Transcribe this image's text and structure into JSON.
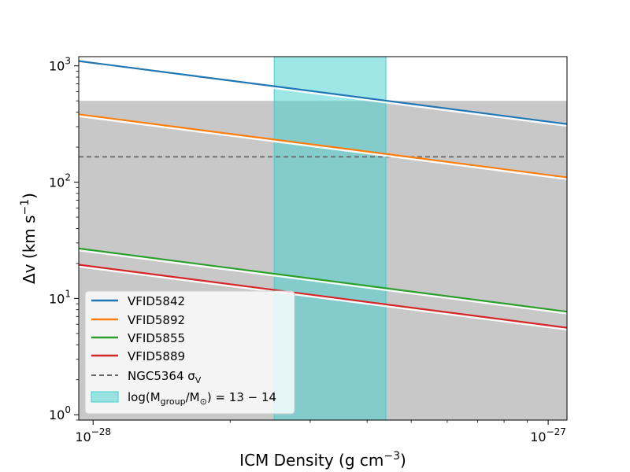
{
  "chart_data": {
    "type": "line",
    "xscale": "log",
    "yscale": "log",
    "xlim": [
      9.3e-29,
      1.1e-27
    ],
    "ylim": [
      0.9,
      1200
    ],
    "xlabel": "ICM Density (g cm",
    "xlabel_sup": "−3",
    "xlabel_close": ")",
    "ylabel_main": "Δv (km s",
    "ylabel_sup": "−1",
    "ylabel_close": ")",
    "xticks": [
      {
        "value": 1e-28,
        "base": "10",
        "exp": "−28"
      },
      {
        "value": 1e-27,
        "base": "10",
        "exp": "−27"
      }
    ],
    "yticks": [
      {
        "value": 1,
        "base": "10",
        "exp": "0"
      },
      {
        "value": 10,
        "base": "10",
        "exp": "1"
      },
      {
        "value": 100,
        "base": "10",
        "exp": "2"
      },
      {
        "value": 1000,
        "base": "10",
        "exp": "3"
      }
    ],
    "series": [
      {
        "name": "VFID5842",
        "color": "#1f77b4",
        "x": [
          9.3e-29,
          1.1e-27
        ],
        "y": [
          1100,
          316
        ]
      },
      {
        "name": "VFID5892",
        "color": "#ff7f0e",
        "x": [
          9.3e-29,
          1.1e-27
        ],
        "y": [
          383,
          110
        ]
      },
      {
        "name": "VFID5855",
        "color": "#2ca02c",
        "x": [
          9.3e-29,
          1.1e-27
        ],
        "y": [
          26.9,
          7.7
        ]
      },
      {
        "name": "VFID5889",
        "color": "#d62728",
        "x": [
          9.3e-29,
          1.1e-27
        ],
        "y": [
          19.5,
          5.6
        ]
      }
    ],
    "hline": {
      "name": "NGC5364 σ",
      "subscript": "V",
      "y": 165,
      "color": "#666666"
    },
    "gray_band": {
      "y_max": 500,
      "color": "#c8c8c8"
    },
    "vspan": {
      "x_min": 2.5e-28,
      "x_max": 4.4e-28,
      "color": "#40d0d0",
      "label_pre": "log(M",
      "label_sub1": "group",
      "label_mid": "/M",
      "label_sub2": "⊙",
      "label_post": ") = 13 − 14"
    }
  }
}
